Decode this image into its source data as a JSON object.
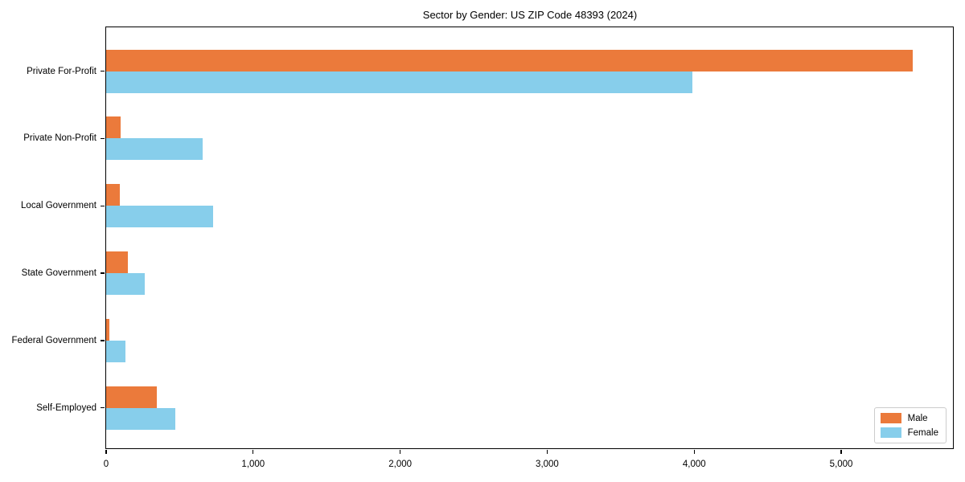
{
  "title": "Sector by Gender: US ZIP Code 48393 (2024)",
  "colors": {
    "male": "#EB7A3B",
    "female": "#87CEEB",
    "spine": "#000000",
    "legend_border": "#CCCCCC"
  },
  "chart_data": {
    "type": "bar",
    "orientation": "horizontal",
    "title": "Sector by Gender: US ZIP Code 48393 (2024)",
    "xlabel": "",
    "ylabel": "",
    "categories": [
      "Private For-Profit",
      "Private Non-Profit",
      "Local Government",
      "State Government",
      "Federal Government",
      "Self-Employed"
    ],
    "series": [
      {
        "name": "Male",
        "color": "#EB7A3B",
        "values": [
          5485,
          100,
          95,
          145,
          20,
          345
        ]
      },
      {
        "name": "Female",
        "color": "#87CEEB",
        "values": [
          3990,
          655,
          730,
          265,
          130,
          470
        ]
      }
    ],
    "xlim": [
      0,
      5760
    ],
    "xticks": [
      0,
      1000,
      2000,
      3000,
      4000,
      5000
    ],
    "xtick_labels": [
      "0",
      "1,000",
      "2,000",
      "3,000",
      "4,000",
      "5,000"
    ],
    "grid": false,
    "legend_position": "lower right"
  },
  "legend": {
    "items": [
      {
        "label": "Male"
      },
      {
        "label": "Female"
      }
    ]
  }
}
